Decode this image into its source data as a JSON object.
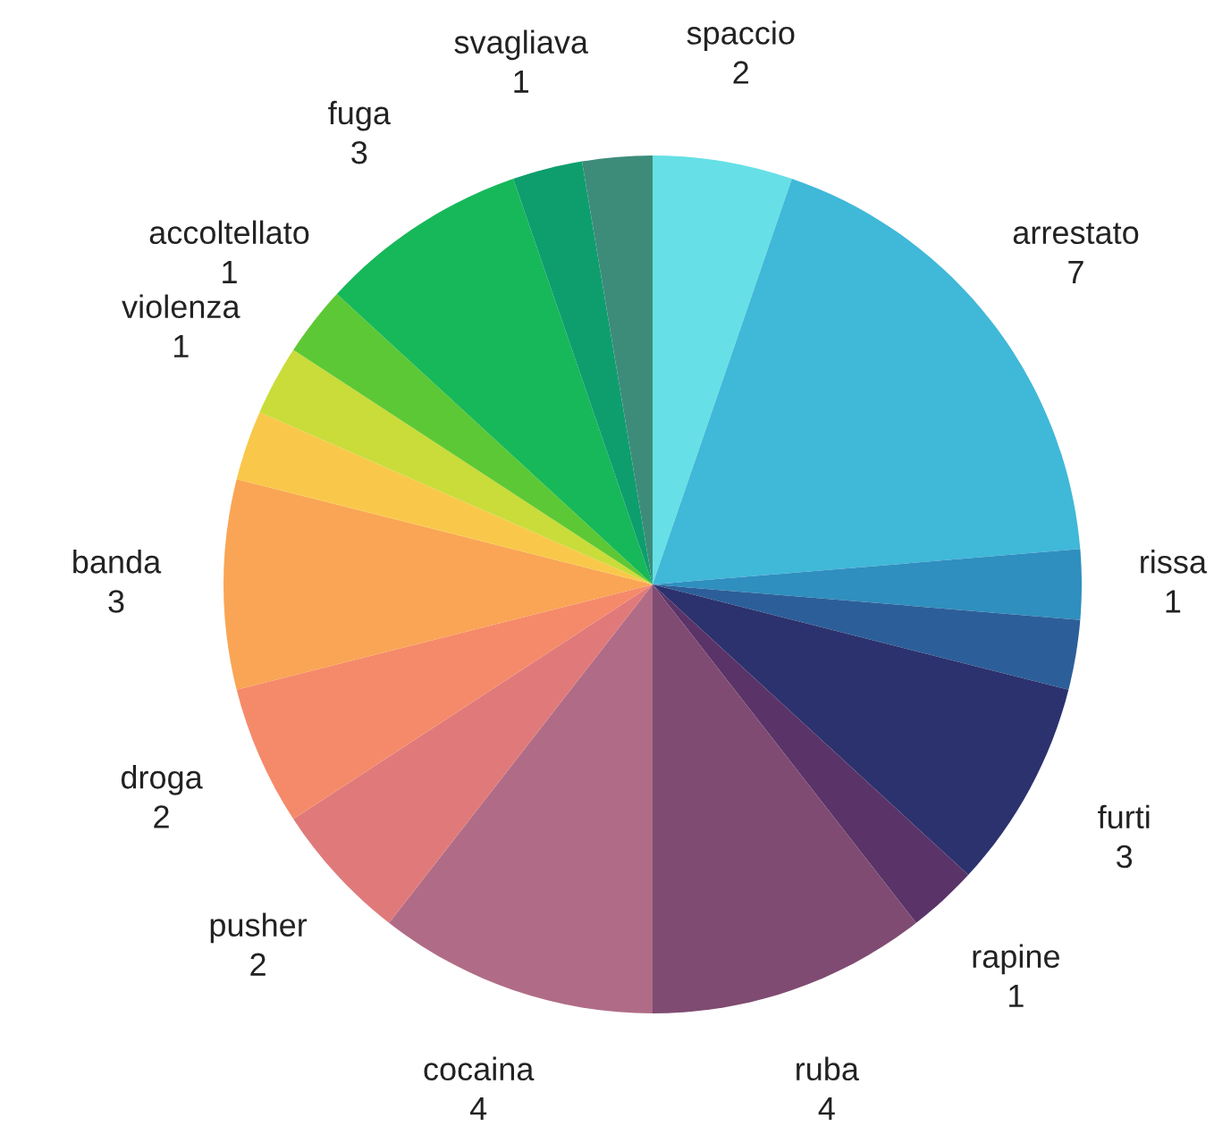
{
  "chart_data": {
    "type": "pie",
    "categories": [
      "spaccio",
      "arrestato",
      "rissa",
      null,
      "furti",
      "rapine",
      "ruba",
      "cocaina",
      "pusher",
      "droga",
      "banda",
      null,
      "violenza",
      "accoltellato",
      "fuga",
      "svagliava",
      null
    ],
    "values": [
      2,
      7,
      1,
      1,
      3,
      1,
      4,
      4,
      2,
      2,
      3,
      1,
      1,
      1,
      3,
      1,
      1
    ],
    "value_labels": [
      "2",
      "7",
      "1",
      null,
      "3",
      "1",
      "4",
      "4",
      "2",
      "2",
      "3",
      null,
      "1",
      "1",
      "3",
      "1",
      null
    ],
    "colors": [
      "#66e0e6",
      "#40b8d8",
      "#2f8fbf",
      "#2c5f99",
      "#2c326e",
      "#5a3468",
      "#7f4b72",
      "#b06c86",
      "#e07a7a",
      "#f58a6a",
      "#f9a555",
      "#f9c84a",
      "#c9dc3a",
      "#5dc835",
      "#17b859",
      "#0e9e6e",
      "#3d8c7a"
    ]
  }
}
